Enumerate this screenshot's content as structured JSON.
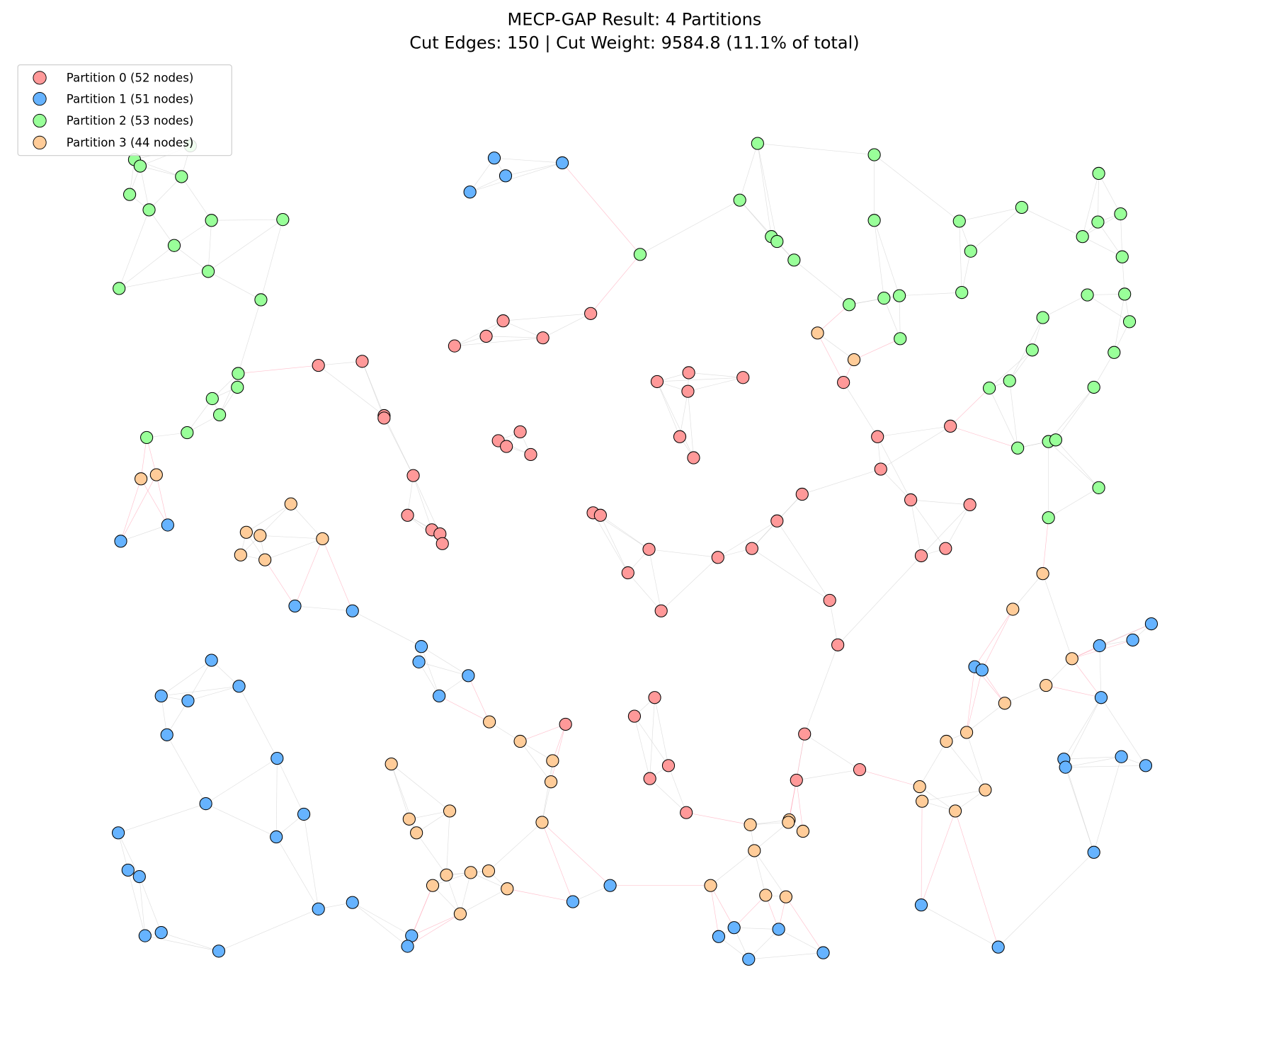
{
  "figure": {
    "title_line1": "MECP-GAP Result: 4 Partitions",
    "title_line2": "Cut Edges: 150 | Cut Weight: 9584.8 (11.1% of total)",
    "cut_edges": 150,
    "cut_weight": 9584.8,
    "cut_weight_percent": 11.1,
    "num_partitions": 4
  },
  "legend": {
    "placement": "top-left",
    "items": [
      {
        "label": "Partition 0 (52 nodes)",
        "nodes": 52,
        "color": "#ff9999"
      },
      {
        "label": "Partition 1 (51 nodes)",
        "nodes": 51,
        "color": "#66b3ff"
      },
      {
        "label": "Partition 2 (53 nodes)",
        "nodes": 53,
        "color": "#99ff99"
      },
      {
        "label": "Partition 3 (44 nodes)",
        "nodes": 44,
        "color": "#ffcc99"
      }
    ]
  },
  "style": {
    "intra_edge_color": "#cccccc",
    "cut_edge_color": "#ffaabb",
    "node_edge_color": "#000000"
  }
}
